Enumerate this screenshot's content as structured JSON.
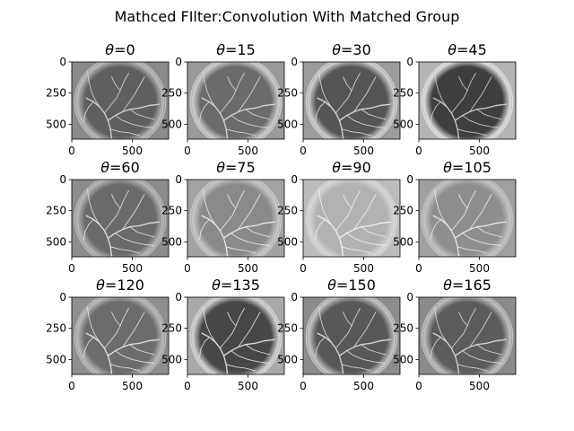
{
  "figure": {
    "suptitle": "Mathced FIlter:Convolution With Matched Group"
  },
  "chart_data": {
    "type": "heatmap",
    "title": "Mathced FIlter:Convolution With Matched Group",
    "layout": "3 rows x 4 columns",
    "image_extent": {
      "x": [
        0,
        800
      ],
      "y": [
        0,
        620
      ]
    },
    "y_inverted": true,
    "xticks": [
      0,
      500
    ],
    "yticks": [
      0,
      250,
      500
    ],
    "colormap": "gray",
    "panels": [
      {
        "theta_symbol": "θ",
        "angle": 0,
        "label": "=0",
        "bg": "#8a8a8a",
        "rim": "#bdbdbd",
        "disc": "#5f5f5f",
        "vessel": "#d8d8d8"
      },
      {
        "theta_symbol": "θ",
        "angle": 15,
        "label": "=15",
        "bg": "#9a9a9a",
        "rim": "#cfcfcf",
        "disc": "#6b6b6b",
        "vessel": "#dcdcdc"
      },
      {
        "theta_symbol": "θ",
        "angle": 30,
        "label": "=30",
        "bg": "#9c9c9c",
        "rim": "#d2d2d2",
        "disc": "#555555",
        "vessel": "#e0e0e0"
      },
      {
        "theta_symbol": "θ",
        "angle": 45,
        "label": "=45",
        "bg": "#b5b5b5",
        "rim": "#e0e0e0",
        "disc": "#3e3e3e",
        "vessel": "#d0d0d0"
      },
      {
        "theta_symbol": "θ",
        "angle": 60,
        "label": "=60",
        "bg": "#8c8c8c",
        "rim": "#b9b9b9",
        "disc": "#6a6a6a",
        "vessel": "#e4e4e4"
      },
      {
        "theta_symbol": "θ",
        "angle": 75,
        "label": "=75",
        "bg": "#a3a3a3",
        "rim": "#c8c8c8",
        "disc": "#8a8a8a",
        "vessel": "#ececec"
      },
      {
        "theta_symbol": "θ",
        "angle": 90,
        "label": "=90",
        "bg": "#bcbcbc",
        "rim": "#d8d8d8",
        "disc": "#b2b2b2",
        "vessel": "#f2f2f2"
      },
      {
        "theta_symbol": "θ",
        "angle": 105,
        "label": "=105",
        "bg": "#a0a0a0",
        "rim": "#c4c4c4",
        "disc": "#8e8e8e",
        "vessel": "#ebebeb"
      },
      {
        "theta_symbol": "θ",
        "angle": 120,
        "label": "=120",
        "bg": "#8f8f8f",
        "rim": "#bcbcbc",
        "disc": "#6c6c6c",
        "vessel": "#e8e8e8"
      },
      {
        "theta_symbol": "θ",
        "angle": 135,
        "label": "=135",
        "bg": "#a9a9a9",
        "rim": "#d5d5d5",
        "disc": "#474747",
        "vessel": "#e6e6e6"
      },
      {
        "theta_symbol": "θ",
        "angle": 150,
        "label": "=150",
        "bg": "#8d8d8d",
        "rim": "#c7c7c7",
        "disc": "#585858",
        "vessel": "#dedede"
      },
      {
        "theta_symbol": "θ",
        "angle": 165,
        "label": "=165",
        "bg": "#8b8b8b",
        "rim": "#c2c2c2",
        "disc": "#5c5c5c",
        "vessel": "#dadada"
      }
    ]
  }
}
